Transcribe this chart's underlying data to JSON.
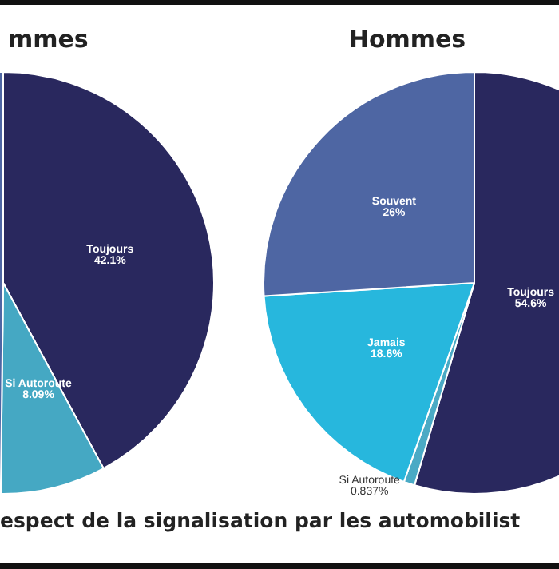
{
  "chart_data": [
    {
      "type": "pie",
      "title": "mmes",
      "categories": [
        "Toujours",
        "Si Autoroute",
        null
      ],
      "values": [
        42.1,
        8.09,
        49.81
      ],
      "colors": [
        "#29285e",
        "#45a8c3",
        "#4e66a3"
      ],
      "value_labels": [
        "42.1%",
        "8.09%",
        null
      ],
      "legend": false,
      "annotations": [
        "espect de la signalisation par les automobilist"
      ]
    },
    {
      "type": "pie",
      "title": "Hommes",
      "categories": [
        "Toujours",
        "Si Autoroute",
        "Jamais",
        "Souvent"
      ],
      "values": [
        54.6,
        0.837,
        18.6,
        26
      ],
      "colors": [
        "#29285e",
        "#4aaac5",
        "#27b7dd",
        "#4e66a3"
      ],
      "value_labels": [
        "54.6%",
        "0.837%",
        "18.6%",
        "26%"
      ],
      "legend": false
    }
  ]
}
